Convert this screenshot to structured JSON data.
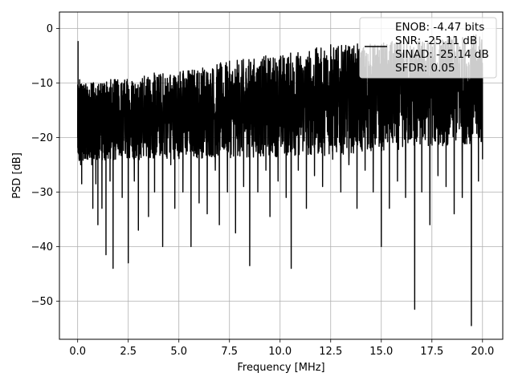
{
  "chart_data": {
    "type": "line",
    "title": "",
    "xlabel": "Frequency [MHz]",
    "ylabel": "PSD [dB]",
    "xlim": [
      -0.9,
      21.0
    ],
    "ylim": [
      -57,
      3
    ],
    "xticks": [
      0.0,
      2.5,
      5.0,
      7.5,
      10.0,
      12.5,
      15.0,
      17.5,
      20.0
    ],
    "xtick_labels": [
      "0.0",
      "2.5",
      "5.0",
      "7.5",
      "10.0",
      "12.5",
      "15.0",
      "17.5",
      "20.0"
    ],
    "yticks": [
      0,
      -10,
      -20,
      -30,
      -40,
      -50
    ],
    "ytick_labels": [
      "0",
      "−10",
      "−20",
      "−30",
      "−40",
      "−50"
    ],
    "grid": true,
    "legend": {
      "placement": "top-right",
      "entries": [
        "ENOB: -4.47 bits",
        "SNR: -25.11 dB",
        "SINAD: -25.14 dB",
        "SFDR: 0.05"
      ]
    },
    "series": [
      {
        "color": "#000000",
        "points": [
          [
            0.0,
            -19
          ],
          [
            0.02,
            -2.4
          ],
          [
            0.05,
            -14
          ],
          [
            0.1,
            -9.4
          ],
          [
            0.15,
            -25
          ],
          [
            0.2,
            -28.5
          ],
          [
            0.25,
            -17
          ],
          [
            0.3,
            -15
          ],
          [
            0.35,
            -22
          ],
          [
            0.4,
            -19
          ],
          [
            0.5,
            -24
          ],
          [
            0.6,
            -15
          ],
          [
            0.7,
            -25
          ],
          [
            0.75,
            -33
          ],
          [
            0.8,
            -18
          ],
          [
            0.9,
            -28.5
          ],
          [
            1.0,
            -36
          ],
          [
            1.1,
            -13.5
          ],
          [
            1.2,
            -33
          ],
          [
            1.3,
            -18
          ],
          [
            1.4,
            -41.5
          ],
          [
            1.5,
            -15
          ],
          [
            1.6,
            -28
          ],
          [
            1.75,
            -44
          ],
          [
            1.9,
            -13
          ],
          [
            2.0,
            -20
          ],
          [
            2.2,
            -31
          ],
          [
            2.4,
            -12
          ],
          [
            2.5,
            -43
          ],
          [
            2.6,
            -15
          ],
          [
            2.8,
            -28
          ],
          [
            3.0,
            -37
          ],
          [
            3.1,
            -12.5
          ],
          [
            3.3,
            -21
          ],
          [
            3.5,
            -34.5
          ],
          [
            3.6,
            -11.5
          ],
          [
            3.8,
            -30
          ],
          [
            4.0,
            -14
          ],
          [
            4.2,
            -40
          ],
          [
            4.4,
            -12
          ],
          [
            4.6,
            -25
          ],
          [
            4.8,
            -33
          ],
          [
            5.0,
            -11
          ],
          [
            5.2,
            -30
          ],
          [
            5.4,
            -13
          ],
          [
            5.6,
            -40
          ],
          [
            5.8,
            -10.5
          ],
          [
            6.0,
            -32
          ],
          [
            6.2,
            -12
          ],
          [
            6.4,
            -34
          ],
          [
            6.6,
            -11
          ],
          [
            6.8,
            -26
          ],
          [
            7.0,
            -36
          ],
          [
            7.2,
            -10
          ],
          [
            7.4,
            -30
          ],
          [
            7.6,
            -13
          ],
          [
            7.8,
            -37.5
          ],
          [
            8.0,
            -10
          ],
          [
            8.2,
            -29
          ],
          [
            8.4,
            -12
          ],
          [
            8.5,
            -43.5
          ],
          [
            8.7,
            -9.5
          ],
          [
            8.9,
            -30
          ],
          [
            9.1,
            -11
          ],
          [
            9.3,
            -26
          ],
          [
            9.5,
            -34.5
          ],
          [
            9.7,
            -9
          ],
          [
            9.9,
            -28
          ],
          [
            10.1,
            -8.5
          ],
          [
            10.3,
            -31
          ],
          [
            10.55,
            -44
          ],
          [
            10.7,
            -8
          ],
          [
            10.9,
            -26
          ],
          [
            11.1,
            -9
          ],
          [
            11.3,
            -33
          ],
          [
            11.5,
            -5.5
          ],
          [
            11.7,
            -27
          ],
          [
            11.9,
            -7
          ],
          [
            12.1,
            -29
          ],
          [
            12.3,
            -5
          ],
          [
            12.5,
            -3
          ],
          [
            12.6,
            -24
          ],
          [
            12.8,
            -6
          ],
          [
            13.0,
            -30
          ],
          [
            13.2,
            -4
          ],
          [
            13.4,
            -25
          ],
          [
            13.6,
            -6
          ],
          [
            13.8,
            -33
          ],
          [
            14.0,
            -4.5
          ],
          [
            14.2,
            -26
          ],
          [
            14.4,
            -7
          ],
          [
            14.6,
            -30
          ],
          [
            14.8,
            -5
          ],
          [
            15.0,
            -40
          ],
          [
            15.2,
            -8
          ],
          [
            15.4,
            -33
          ],
          [
            15.6,
            -6
          ],
          [
            15.8,
            -28
          ],
          [
            16.0,
            -7
          ],
          [
            16.2,
            -31
          ],
          [
            16.4,
            -5
          ],
          [
            16.65,
            -51.5
          ],
          [
            16.8,
            -8
          ],
          [
            17.0,
            -30
          ],
          [
            17.2,
            -6
          ],
          [
            17.4,
            -36
          ],
          [
            17.6,
            -5
          ],
          [
            17.8,
            -27
          ],
          [
            18.0,
            -7
          ],
          [
            18.2,
            -29
          ],
          [
            18.4,
            -8
          ],
          [
            18.6,
            -34
          ],
          [
            18.8,
            -6.5
          ],
          [
            19.0,
            -31
          ],
          [
            19.2,
            -9
          ],
          [
            19.45,
            -54.5
          ],
          [
            19.6,
            -10
          ],
          [
            19.8,
            -28
          ],
          [
            19.9,
            -12
          ],
          [
            20.0,
            -24
          ]
        ]
      }
    ]
  }
}
